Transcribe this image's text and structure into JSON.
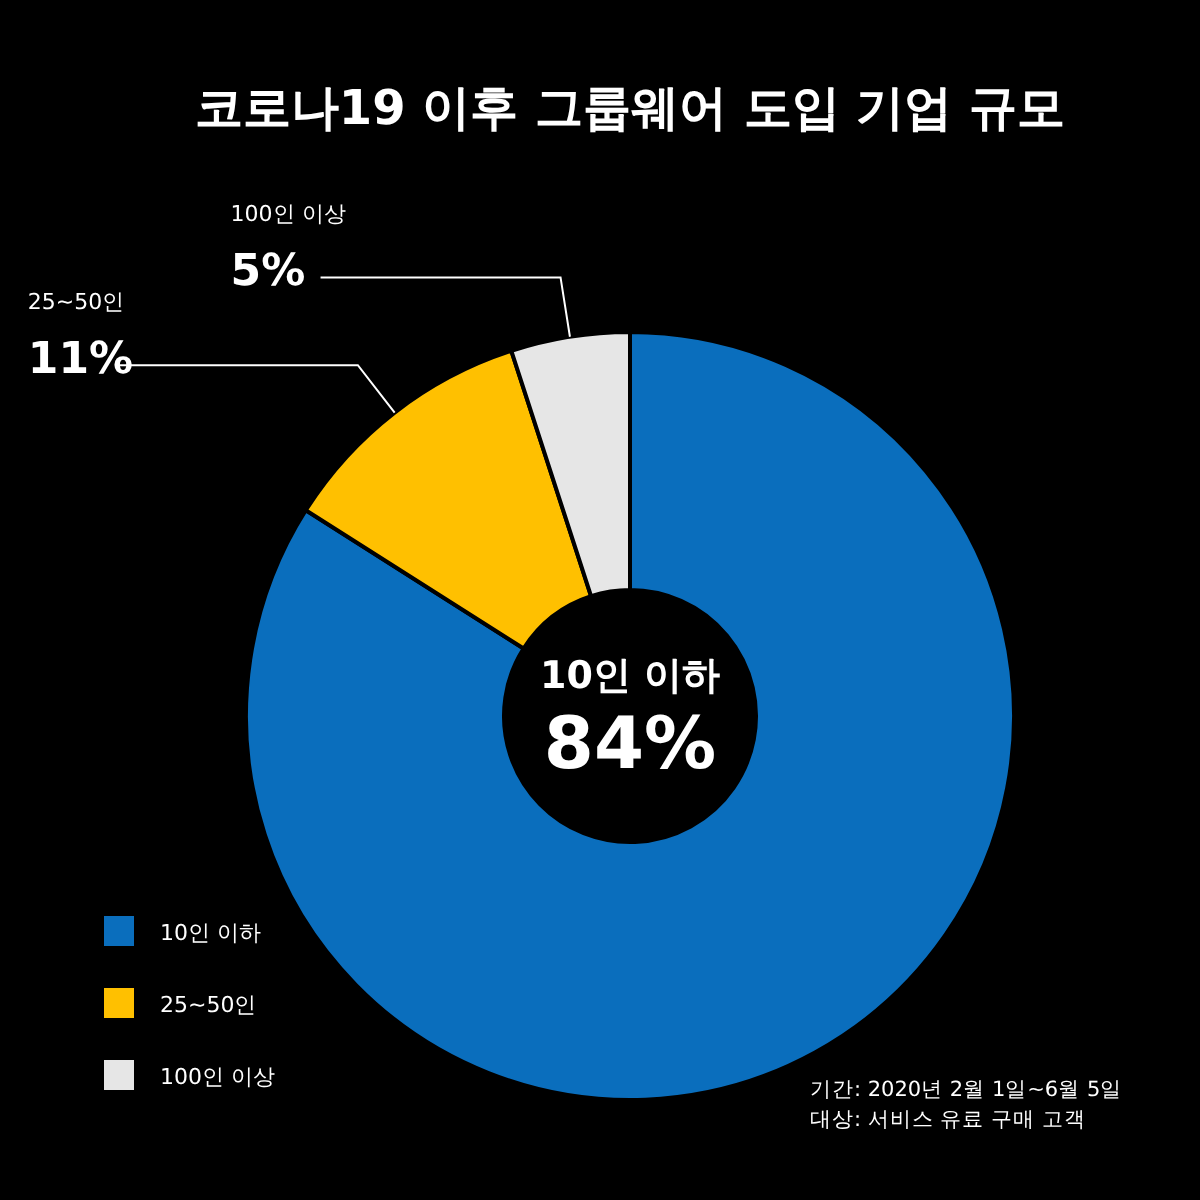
{
  "chart_data": {
    "type": "donut",
    "title": "코로나19 이후 그룹웨어 도입 기업 규모",
    "categories": [
      "10인 이하",
      "25~50인",
      "100인 이상"
    ],
    "values": [
      84,
      11,
      5
    ],
    "colors": [
      "#0a6ebd",
      "#ffc000",
      "#e6e6e6"
    ],
    "value_labels": [
      "84%",
      "11%",
      "5%"
    ],
    "legend": "bottom left",
    "annotations": [
      "기간: 2020년 2월 1일~6월 5일",
      "대상: 서비스 유료 구매 고객"
    ]
  }
}
